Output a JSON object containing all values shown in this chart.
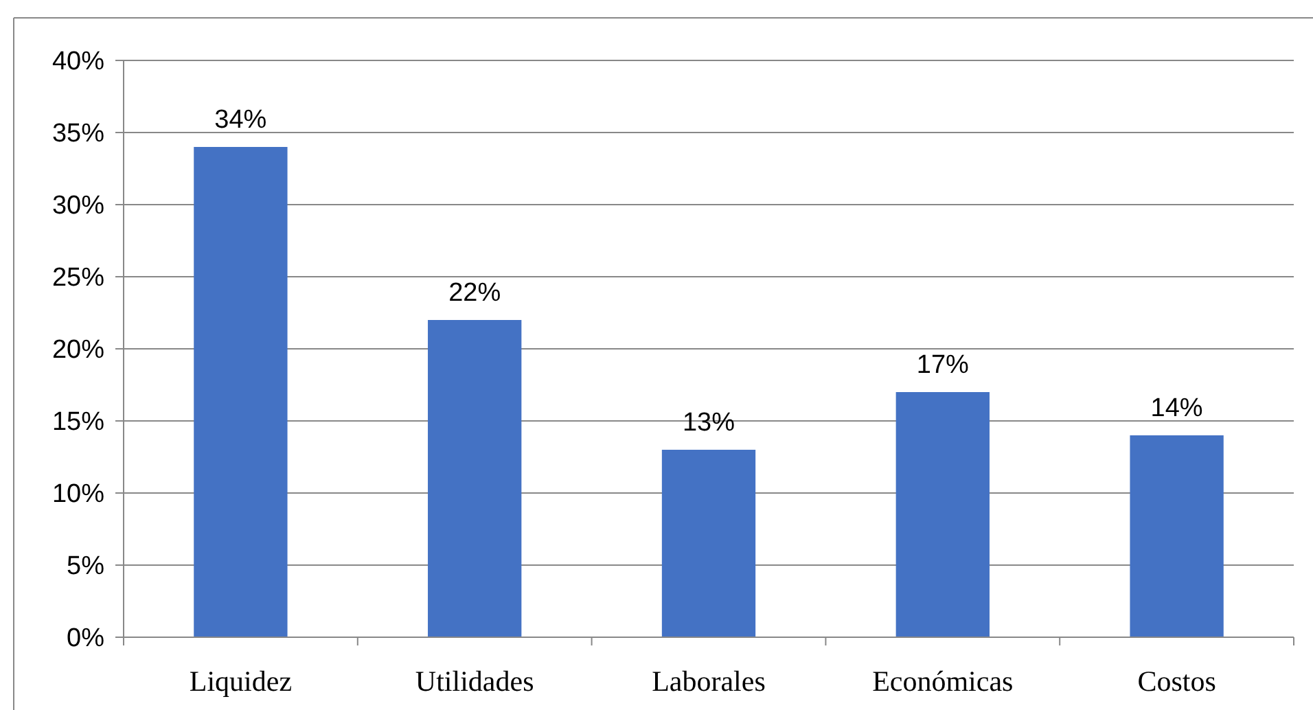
{
  "chart_data": {
    "type": "bar",
    "categories": [
      "Liquidez",
      "Utilidades",
      "Laborales",
      "Económicas",
      "Costos"
    ],
    "values": [
      34,
      22,
      13,
      17,
      14
    ],
    "value_labels": [
      "34%",
      "22%",
      "13%",
      "17%",
      "14%"
    ],
    "color": "#4472c4",
    "ylim": [
      0,
      40
    ],
    "yticks": [
      {
        "value": 0,
        "label": "0%"
      },
      {
        "value": 5,
        "label": "5%"
      },
      {
        "value": 10,
        "label": "10%"
      },
      {
        "value": 15,
        "label": "15%"
      },
      {
        "value": 20,
        "label": "20%"
      },
      {
        "value": 25,
        "label": "25%"
      },
      {
        "value": 30,
        "label": "30%"
      },
      {
        "value": 35,
        "label": "35%"
      },
      {
        "value": 40,
        "label": "40%"
      }
    ],
    "grid": "y"
  }
}
